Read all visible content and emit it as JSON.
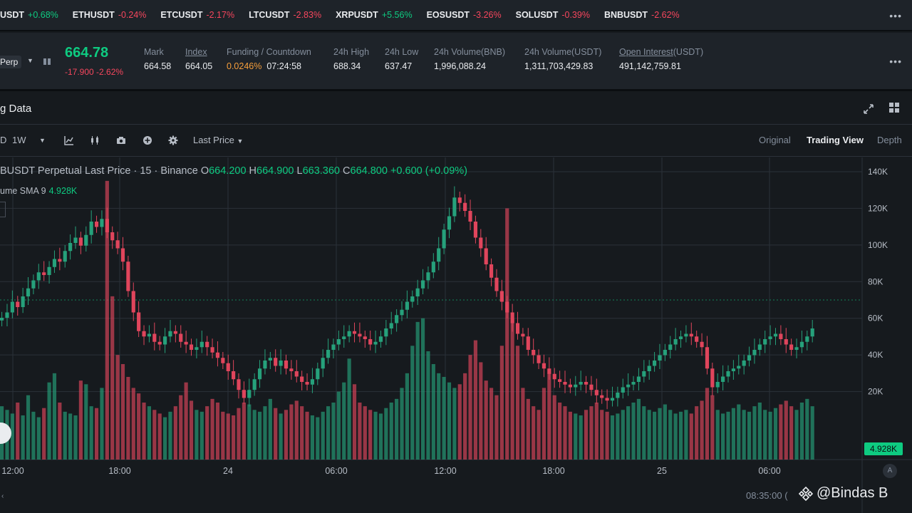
{
  "ticker": [
    {
      "symbol": "USDT",
      "change": "+0.68%",
      "dir": "up"
    },
    {
      "symbol": "ETHUSDT",
      "change": "-0.24%",
      "dir": "down"
    },
    {
      "symbol": "ETCUSDT",
      "change": "-2.17%",
      "dir": "down"
    },
    {
      "symbol": "LTCUSDT",
      "change": "-2.83%",
      "dir": "down"
    },
    {
      "symbol": "XRPUSDT",
      "change": "+5.56%",
      "dir": "up"
    },
    {
      "symbol": "EOSUSDT",
      "change": "-3.26%",
      "dir": "down"
    },
    {
      "symbol": "SOLUSDT",
      "change": "-0.39%",
      "dir": "down"
    },
    {
      "symbol": "BNBUSDT",
      "change": "-2.62%",
      "dir": "down"
    }
  ],
  "market": {
    "perp_label": "Perp",
    "last_price": "664.78",
    "change": "-17.900 -2.62%",
    "stats": [
      {
        "label": "Mark",
        "value": "664.58",
        "underline": false
      },
      {
        "label": "Index",
        "value": "664.05",
        "underline": true
      },
      {
        "label": "Funding / Countdown",
        "value_a": "0.0246%",
        "value_b": "07:24:58",
        "underline": false
      },
      {
        "label": "24h High",
        "value": "688.34",
        "underline": false
      },
      {
        "label": "24h Low",
        "value": "637.47",
        "underline": false
      },
      {
        "label": "24h Volume(BNB)",
        "value": "1,996,088.24",
        "underline": false
      },
      {
        "label": "24h Volume(USDT)",
        "value": "1,311,703,429.83",
        "underline": false
      },
      {
        "label_u": "Open Interest",
        "label_rest": "(USDT)",
        "value": "491,142,759.81"
      }
    ]
  },
  "chart_header": {
    "title": "g Data"
  },
  "toolbar": {
    "interval_prev": "D",
    "interval": "1W",
    "price_type": "Last Price",
    "views": [
      "Original",
      "Trading View",
      "Depth"
    ],
    "active_view": "Trading View"
  },
  "legend": {
    "title": "BUSDT Perpetual Last Price · 15 · Binance",
    "o_key": "O",
    "o": "664.200",
    "h_key": "H",
    "h": "664.900",
    "l_key": "L",
    "l": "663.360",
    "c_key": "C",
    "c": "664.800",
    "change": "+0.600 (+0.09%)",
    "vol_label": "ume SMA 9",
    "vol_value": "4.928K"
  },
  "chart_data": {
    "type": "candlestick",
    "x_tick_labels": [
      "12:00",
      "18:00",
      "24",
      "06:00",
      "12:00",
      "18:00",
      "25",
      "06:00"
    ],
    "y_tick_labels": [
      "140K",
      "120K",
      "100K",
      "80K",
      "60K",
      "40K",
      "20K"
    ],
    "y_axis_scale": "volume",
    "volume_marker": "4.928K",
    "colors": {
      "up": "#26a17b",
      "down": "#e0455c",
      "grid": "#2b3139"
    },
    "price_series": [
      82,
      84,
      88,
      86,
      90,
      93,
      96,
      99,
      98,
      101,
      104,
      103,
      107,
      110,
      112,
      109,
      113,
      118,
      116,
      119,
      114,
      111,
      108,
      103,
      92,
      84,
      77,
      75,
      76,
      73,
      72,
      75,
      77,
      76,
      73,
      72,
      70,
      71,
      73,
      71,
      69,
      67,
      65,
      62,
      59,
      55,
      52,
      55,
      59,
      63,
      66,
      67,
      64,
      66,
      63,
      62,
      60,
      58,
      57,
      59,
      63,
      67,
      70,
      72,
      74,
      75,
      77,
      76,
      75,
      74,
      72,
      73,
      75,
      78,
      80,
      83,
      85,
      88,
      90,
      93,
      96,
      99,
      103,
      108,
      115,
      120,
      127,
      125,
      122,
      118,
      112,
      108,
      102,
      97,
      92,
      88,
      84,
      80,
      76,
      75,
      70,
      68,
      65,
      63,
      61,
      59,
      58,
      57,
      56,
      57,
      58,
      57,
      55,
      53,
      52,
      51,
      52,
      54,
      56,
      57,
      58,
      60,
      62,
      64,
      66,
      68,
      70,
      72,
      74,
      75,
      76,
      75,
      73,
      71,
      63,
      56,
      58,
      60,
      62,
      63,
      64,
      66,
      68,
      70,
      72,
      74,
      75,
      76,
      74,
      72,
      70,
      71,
      73,
      75,
      78
    ],
    "volume_series": [
      12,
      10,
      8,
      14,
      7,
      18,
      9,
      6,
      11,
      25,
      30,
      14,
      9,
      8,
      7,
      26,
      24,
      12,
      11,
      22,
      135,
      72,
      40,
      35,
      28,
      22,
      19,
      14,
      12,
      10,
      8,
      6,
      9,
      12,
      18,
      25,
      15,
      10,
      9,
      12,
      16,
      14,
      9,
      8,
      7,
      11,
      14,
      13,
      10,
      9,
      12,
      16,
      11,
      8,
      10,
      13,
      15,
      12,
      9,
      7,
      6,
      9,
      12,
      14,
      20,
      25,
      38,
      24,
      14,
      12,
      10,
      9,
      8,
      11,
      14,
      16,
      22,
      30,
      45,
      58,
      60,
      42,
      35,
      30,
      28,
      25,
      22,
      24,
      30,
      40,
      48,
      36,
      26,
      22,
      18,
      45,
      120,
      60,
      45,
      22,
      16,
      12,
      10,
      22,
      30,
      18,
      14,
      12,
      9,
      8,
      7,
      10,
      12,
      14,
      10,
      9,
      7,
      8,
      10,
      12,
      14,
      16,
      12,
      10,
      9,
      11,
      13,
      10,
      8,
      9,
      10,
      8,
      12,
      15,
      22,
      18,
      10,
      8,
      9,
      11,
      13,
      10,
      9,
      12,
      14,
      10,
      9,
      11,
      13,
      15,
      12,
      10,
      14,
      16,
      12
    ],
    "bar_dir": "udduduuduudduudduuduudduuduudduuduudduuduudduuduudduuduudduuduudduuduudduuduudduuduudduuduudduuduudduuduudduuduudduuduudduuduudduuduudduuduudduuduudduudu"
  },
  "readouts": {
    "vol_tag": "4.928K",
    "time": "08:35:00 (",
    "auto_btn": "A",
    "watermark": "@Bindas B"
  },
  "icons": [
    "chevron-down-icon",
    "book-icon",
    "expand-icon",
    "grid-icon",
    "indicator-icon",
    "candle-type-icon",
    "camera-icon",
    "add-icon",
    "gear-icon",
    "binance-logo-icon"
  ]
}
